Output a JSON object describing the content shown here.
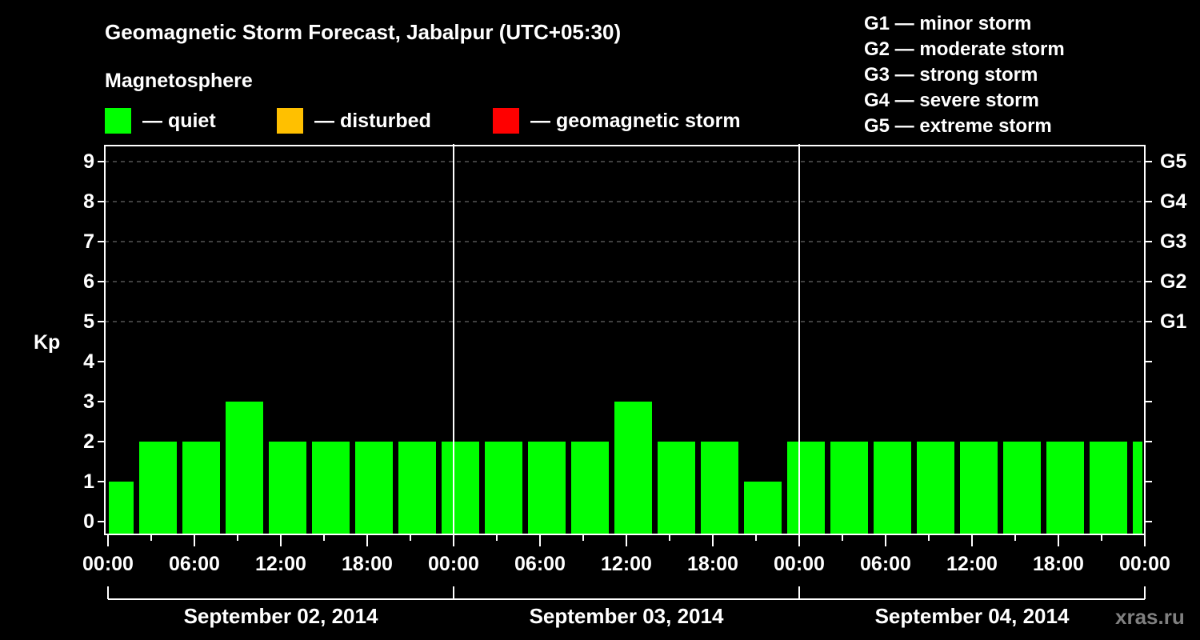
{
  "header": {
    "title": "Geomagnetic Storm Forecast, Jabalpur (UTC+05:30)",
    "subtitle": "Magnetosphere"
  },
  "legend": {
    "items": [
      {
        "label": "— quiet",
        "color": "#00ff00"
      },
      {
        "label": "— disturbed",
        "color": "#ffc000"
      },
      {
        "label": "— geomagnetic storm",
        "color": "#ff0000"
      }
    ]
  },
  "storm_scale": {
    "items": [
      "G1 — minor storm",
      "G2 — moderate storm",
      "G3 — strong storm",
      "G4 — severe storm",
      "G5 — extreme storm"
    ]
  },
  "axes": {
    "ylabel": "Kp",
    "yticks": [
      "0",
      "1",
      "2",
      "3",
      "4",
      "5",
      "6",
      "7",
      "8",
      "9"
    ],
    "right_ticks": [
      {
        "label": "G1",
        "kp": 5
      },
      {
        "label": "G2",
        "kp": 6
      },
      {
        "label": "G3",
        "kp": 7
      },
      {
        "label": "G4",
        "kp": 8
      },
      {
        "label": "G5",
        "kp": 9
      }
    ],
    "xticks": [
      "00:00",
      "06:00",
      "12:00",
      "18:00",
      "00:00",
      "06:00",
      "12:00",
      "18:00",
      "00:00",
      "06:00",
      "12:00",
      "18:00",
      "00:00"
    ],
    "dates": [
      "September 02, 2014",
      "September 03, 2014",
      "September 04, 2014"
    ]
  },
  "credit": "xras.ru",
  "colors": {
    "quiet": "#00ff00",
    "disturbed": "#ffc000",
    "storm": "#ff0000",
    "background": "#000000",
    "axis": "#ffffff",
    "grid": "#808080"
  },
  "chart_data": {
    "type": "bar",
    "title": "Geomagnetic Storm Forecast, Jabalpur (UTC+05:30)",
    "xlabel": "",
    "ylabel": "Kp",
    "ylim": [
      0,
      9
    ],
    "grid": "dashed horizontal at Kp 5-9",
    "legend_position": "top",
    "bar_interval_hours": 3,
    "categories": [
      "Sep 02 ~00:00 (partial)",
      "Sep 02 ~01:30",
      "Sep 02 ~04:30",
      "Sep 02 ~07:30",
      "Sep 02 ~10:30",
      "Sep 02 ~13:30",
      "Sep 02 ~16:30",
      "Sep 02 ~19:30",
      "Sep 02 ~22:30",
      "Sep 03 ~01:30",
      "Sep 03 ~04:30",
      "Sep 03 ~07:30",
      "Sep 03 ~10:30",
      "Sep 03 ~13:30",
      "Sep 03 ~16:30",
      "Sep 03 ~19:30",
      "Sep 03 ~22:30",
      "Sep 04 ~01:30",
      "Sep 04 ~04:30",
      "Sep 04 ~07:30",
      "Sep 04 ~10:30",
      "Sep 04 ~13:30",
      "Sep 04 ~16:30",
      "Sep 04 ~19:30",
      "Sep 04 ~22:30 (partial)"
    ],
    "values": [
      1,
      2,
      2,
      3,
      2,
      2,
      2,
      2,
      2,
      2,
      2,
      2,
      3,
      2,
      2,
      1,
      2,
      2,
      2,
      2,
      2,
      2,
      2,
      2,
      2
    ],
    "status": [
      "quiet",
      "quiet",
      "quiet",
      "quiet",
      "quiet",
      "quiet",
      "quiet",
      "quiet",
      "quiet",
      "quiet",
      "quiet",
      "quiet",
      "quiet",
      "quiet",
      "quiet",
      "quiet",
      "quiet",
      "quiet",
      "quiet",
      "quiet",
      "quiet",
      "quiet",
      "quiet",
      "quiet",
      "quiet"
    ]
  }
}
